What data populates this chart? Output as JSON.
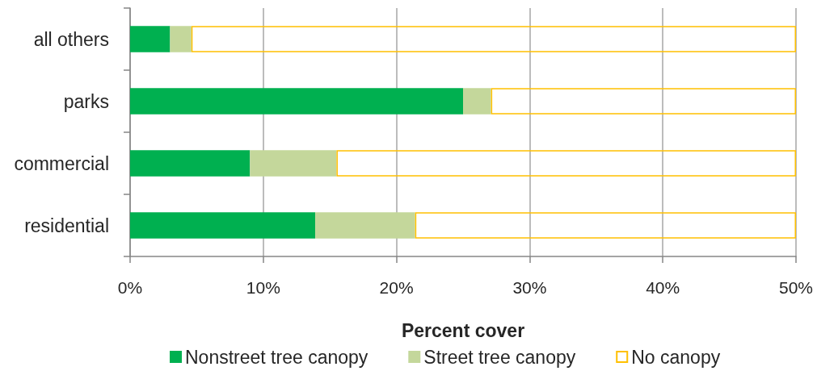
{
  "chart_data": {
    "type": "bar",
    "orientation": "horizontal",
    "stacked": true,
    "categories": [
      "all others",
      "parks",
      "commercial",
      "residential"
    ],
    "series": [
      {
        "name": "Nonstreet tree canopy",
        "color": "#00b050",
        "values": [
          3.0,
          25.0,
          9.0,
          13.9
        ]
      },
      {
        "name": "Street tree canopy",
        "color": "#c4d79b",
        "values": [
          1.6,
          2.1,
          6.5,
          7.5
        ]
      },
      {
        "name": "No canopy",
        "color": "#ffc000",
        "values": [
          45.4,
          22.9,
          34.5,
          28.6
        ]
      }
    ],
    "xlabel": "Percent cover",
    "xlim": [
      0,
      50
    ],
    "xticks": [
      {
        "value": 0,
        "label": "0%"
      },
      {
        "value": 10,
        "label": "10%"
      },
      {
        "value": 20,
        "label": "20%"
      },
      {
        "value": 30,
        "label": "30%"
      },
      {
        "value": 40,
        "label": "40%"
      },
      {
        "value": 50,
        "label": "50%"
      }
    ],
    "grid": "x",
    "legend": "bottom"
  }
}
